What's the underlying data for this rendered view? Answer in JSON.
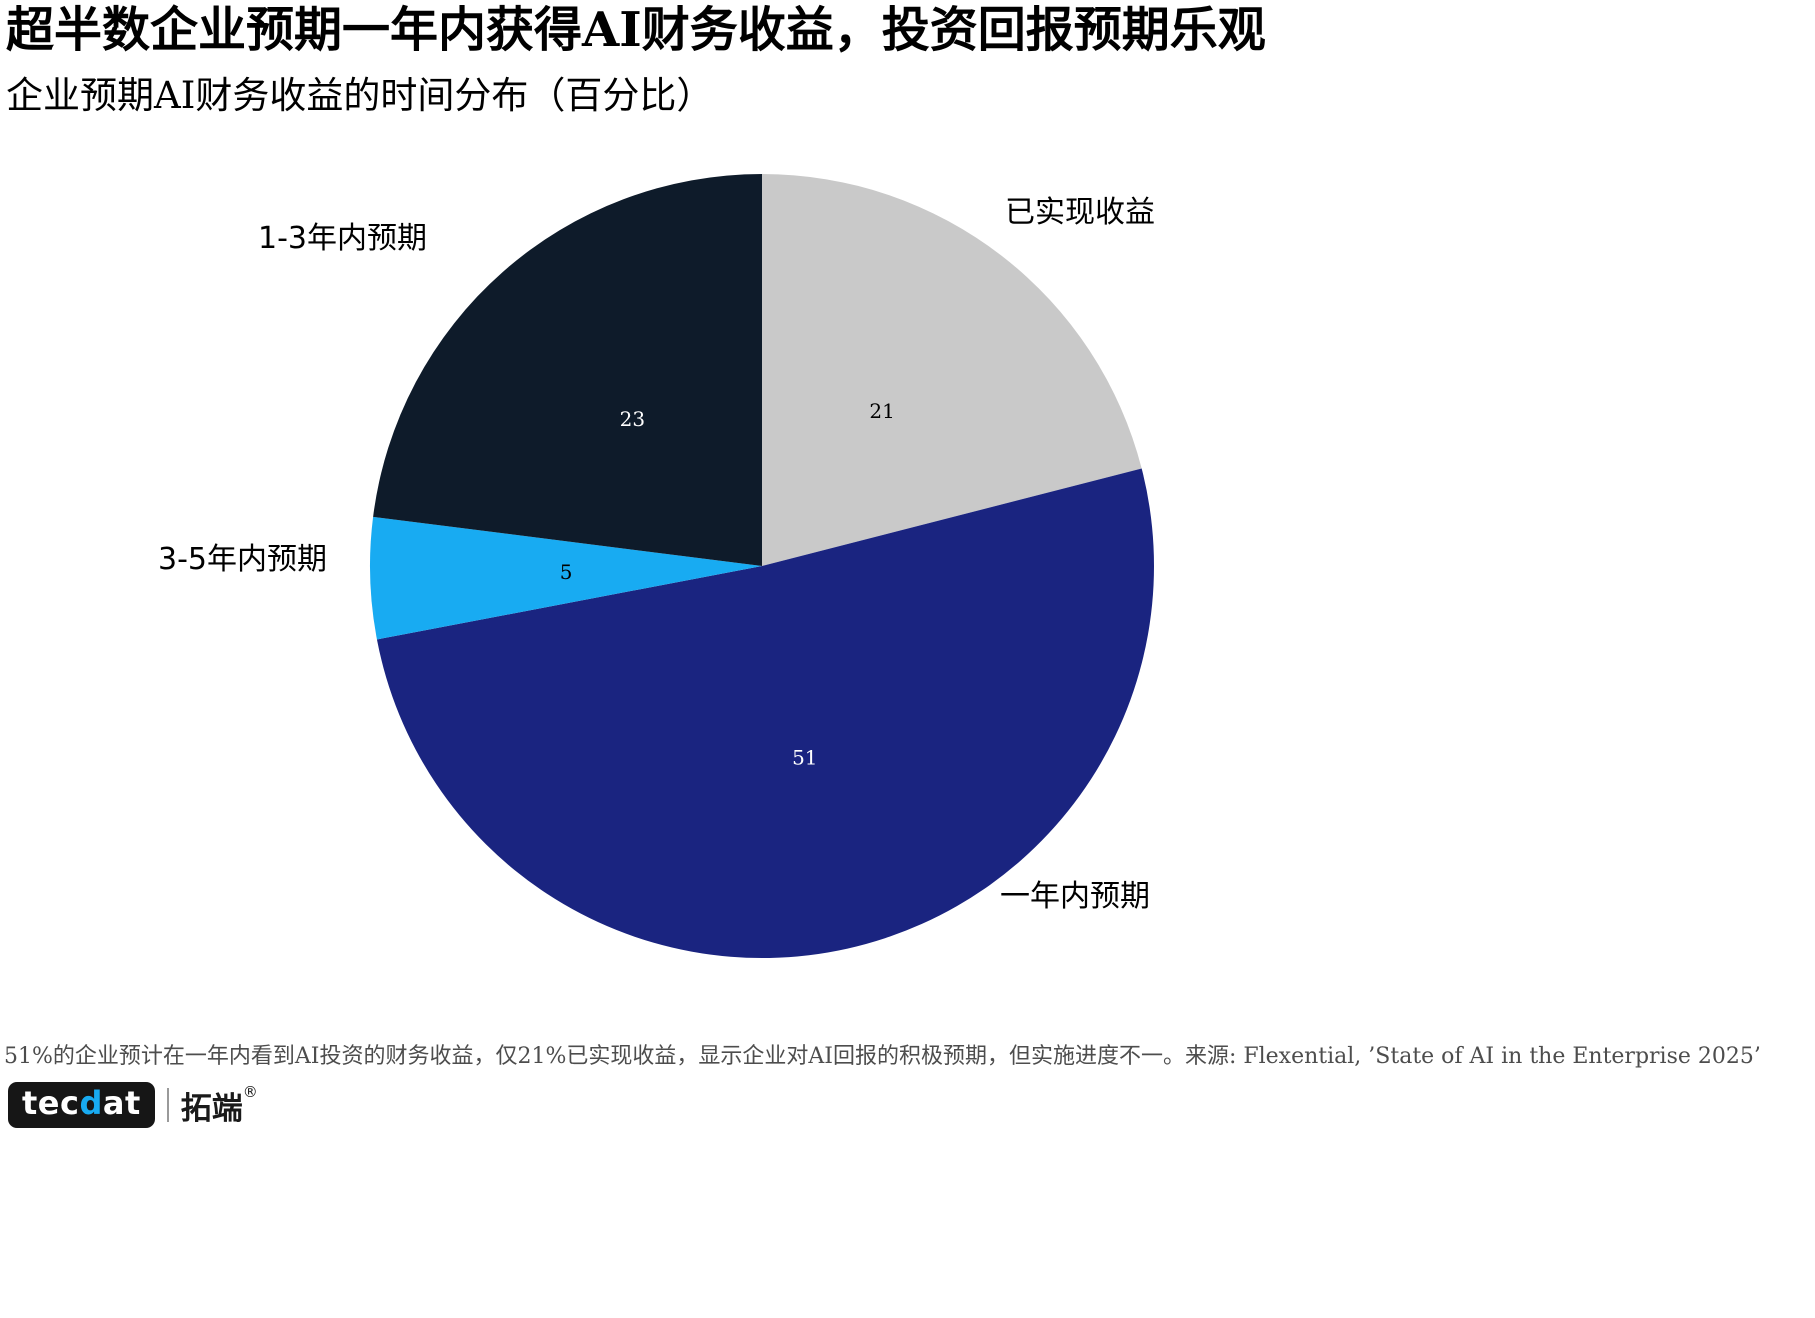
{
  "header": {
    "title": "超半数企业预期一年内获得AI财务收益，投资回报预期乐观",
    "subtitle": "企业预期AI财务收益的时间分布（百分比）"
  },
  "chart_data": {
    "type": "pie",
    "title": "企业预期AI财务收益的时间分布（百分比）",
    "start_angle": "top",
    "direction": "clockwise",
    "legend_position": "outside-labels",
    "slices": [
      {
        "label": "已实现收益",
        "value": 21,
        "color": "#c9c9c9",
        "value_label_color": "#000000"
      },
      {
        "label": "一年内预期",
        "value": 51,
        "color": "#1a2480",
        "value_label_color": "#ffffff"
      },
      {
        "label": "3-5年内预期",
        "value": 5,
        "color": "#18abf2",
        "value_label_color": "#000000"
      },
      {
        "label": "1-3年内预期",
        "value": 23,
        "color": "#0e1b2a",
        "value_label_color": "#ffffff"
      }
    ]
  },
  "footer": {
    "note": "51%的企业预计在一年内看到AI投资的财务收益，仅21%已实现收益，显示企业对AI回报的积极预期，但实施进度不一。来源: Flexential, ’State of AI in the Enterprise 2025’"
  },
  "logo": {
    "text_pre": "tec",
    "text_accent": "d",
    "text_post": "at",
    "cn": "拓端",
    "reg": "®"
  }
}
